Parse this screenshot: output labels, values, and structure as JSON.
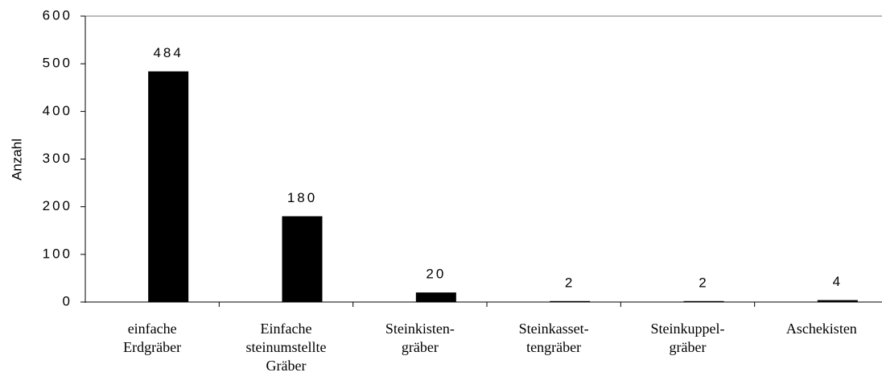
{
  "chart_data": {
    "type": "bar",
    "y_label": "Anzahl",
    "categories": [
      "einfache\nErdgräber",
      "Einfache\nsteinumstellte\nGräber",
      "Steinkisten-\ngräber",
      "Steinkasset-\ntengräber",
      "Steinkuppel-\ngräber",
      "Aschekisten"
    ],
    "values": [
      484,
      180,
      20,
      2,
      2,
      4
    ],
    "color": "#000000",
    "ylim": [
      0,
      600
    ],
    "yticks": [
      0,
      100,
      200,
      300,
      400,
      500,
      600
    ]
  }
}
